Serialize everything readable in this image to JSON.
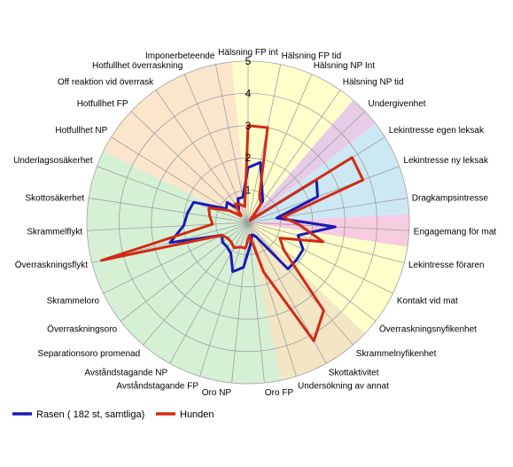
{
  "chart_data": {
    "type": "radar",
    "axes": [
      "Hälsning FP int",
      "Hälsning FP tid",
      "Hälsning NP Int",
      "Hälsning NP tid",
      "Undergivenhet",
      "Lekintresse egen leksak",
      "Lekintresse ny leksak",
      "Dragkampsintresse",
      "Engagemang för mat",
      "Lekintresse föraren",
      "Kontakt vid mat",
      "Överraskningsnyfikenhet",
      "Skrammelnyfikenhet",
      "Skottaktivitet",
      "Undersökning av annat",
      "Oro FP",
      "Oro NP",
      "Avståndstagande FP",
      "Avståndstagande NP",
      "Separationsoro promenad",
      "Överraskningsoro",
      "Skrammeloro",
      "Överraskningsflykt",
      "Skrammelflykt",
      "Skottosäkerhet",
      "Underlagsosäkerhet",
      "Hotfullhet NP",
      "Hotfullhet FP",
      "Off reaktion vid överrask",
      "Hotfullhet överraskning",
      "Imponerbeteende"
    ],
    "tick_values": [
      "1",
      "2",
      "3",
      "4",
      "5"
    ],
    "rlim": [
      0,
      5
    ],
    "series": [
      {
        "name": "Rasen ( 182 st, samtliga)",
        "color": "#1a1ab4",
        "values": [
          1.7,
          1.9,
          1.1,
          0.8,
          0.1,
          2.5,
          2.3,
          0.9,
          2.7,
          1.6,
          1.9,
          1.9,
          1.9,
          0.5,
          0.4,
          0.7,
          1.4,
          1.6,
          1.1,
          1.0,
          1.0,
          0.9,
          2.5,
          2.0,
          1.9,
          1.8,
          0.8,
          0.9,
          0.5,
          0.8,
          0.8
        ]
      },
      {
        "name": "Hunden",
        "color": "#d22a14",
        "values": [
          3.0,
          3.0,
          0.9,
          0.7,
          0.1,
          3.8,
          3.8,
          1.1,
          1.6,
          2.4,
          1.1,
          1.4,
          3.6,
          4.2,
          1.6,
          0.4,
          0.8,
          0.8,
          0.9,
          0.8,
          0.8,
          0.9,
          4.7,
          1.1,
          1.2,
          1.3,
          0.7,
          0.3,
          0.7,
          0.6,
          0.5
        ]
      }
    ],
    "sectors": [
      {
        "from": 0,
        "to": 3,
        "color": "#ffffcc"
      },
      {
        "from": 4,
        "to": 4,
        "color": "#e6cce6"
      },
      {
        "from": 5,
        "to": 7,
        "color": "#cce8f2"
      },
      {
        "from": 8,
        "to": 8,
        "color": "#f5cce0"
      },
      {
        "from": 9,
        "to": 11,
        "color": "#ffffcc"
      },
      {
        "from": 12,
        "to": 14,
        "color": "#f2e6c4"
      },
      {
        "from": 15,
        "to": 25,
        "color": "#d6f0d6"
      },
      {
        "from": 26,
        "to": 30,
        "color": "#fbe6cc"
      }
    ],
    "legend": "bottom-left",
    "grid": true
  }
}
